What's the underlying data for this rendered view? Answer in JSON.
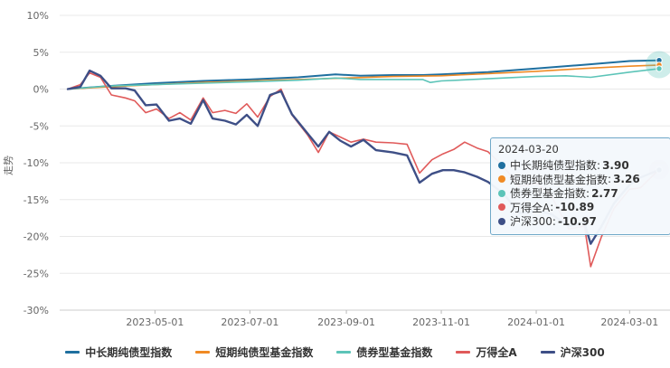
{
  "chart_data": {
    "type": "line",
    "ylabel": "走势",
    "ylim": [
      -30,
      10
    ],
    "y_ticks": [
      "10%",
      "5%",
      "0%",
      "-5%",
      "-10%",
      "-15%",
      "-20%",
      "-25%",
      "-30%"
    ],
    "y_tick_values": [
      10,
      5,
      0,
      -5,
      -10,
      -15,
      -20,
      -25,
      -30
    ],
    "x_start": "2023-03-06",
    "x_end": "2024-03-20",
    "x_ticks": [
      {
        "date": "2023-05-01",
        "label": "2023-05-01"
      },
      {
        "date": "2023-07-01",
        "label": "2023-07-01"
      },
      {
        "date": "2023-09-01",
        "label": "2023-09-01"
      },
      {
        "date": "2023-11-01",
        "label": "2023-11-01"
      },
      {
        "date": "2024-01-01",
        "label": "2024-01-01"
      },
      {
        "date": "2024-03-01",
        "label": "2024-03-01"
      }
    ],
    "grid": "horizontal",
    "legend": "bottom",
    "series": [
      {
        "name": "中长期纯债型指数",
        "color": "#1f6f9f",
        "width": 2,
        "points": [
          [
            "2023-03-06",
            0
          ],
          [
            "2023-04-01",
            0.4
          ],
          [
            "2023-05-01",
            0.8
          ],
          [
            "2023-06-01",
            1.1
          ],
          [
            "2023-07-01",
            1.3
          ],
          [
            "2023-08-01",
            1.6
          ],
          [
            "2023-08-25",
            2.0
          ],
          [
            "2023-09-10",
            1.8
          ],
          [
            "2023-10-01",
            1.9
          ],
          [
            "2023-10-20",
            1.9
          ],
          [
            "2023-11-01",
            2.0
          ],
          [
            "2023-12-01",
            2.3
          ],
          [
            "2024-01-01",
            2.8
          ],
          [
            "2024-02-01",
            3.3
          ],
          [
            "2024-03-01",
            3.8
          ],
          [
            "2024-03-20",
            3.9
          ]
        ]
      },
      {
        "name": "短期纯债型基金指数",
        "color": "#f08a24",
        "width": 1.6,
        "points": [
          [
            "2023-03-06",
            0
          ],
          [
            "2023-04-01",
            0.3
          ],
          [
            "2023-05-01",
            0.6
          ],
          [
            "2023-06-01",
            0.9
          ],
          [
            "2023-07-01",
            1.1
          ],
          [
            "2023-08-01",
            1.3
          ],
          [
            "2023-09-01",
            1.5
          ],
          [
            "2023-10-01",
            1.7
          ],
          [
            "2023-11-01",
            1.8
          ],
          [
            "2023-12-01",
            2.1
          ],
          [
            "2024-01-01",
            2.4
          ],
          [
            "2024-02-01",
            2.8
          ],
          [
            "2024-03-01",
            3.1
          ],
          [
            "2024-03-20",
            3.26
          ]
        ]
      },
      {
        "name": "债券型基金指数",
        "color": "#5cc4b8",
        "width": 1.6,
        "points": [
          [
            "2023-03-06",
            0
          ],
          [
            "2023-04-01",
            0.4
          ],
          [
            "2023-05-01",
            0.6
          ],
          [
            "2023-06-01",
            0.8
          ],
          [
            "2023-07-01",
            1.0
          ],
          [
            "2023-08-01",
            1.2
          ],
          [
            "2023-08-25",
            1.5
          ],
          [
            "2023-09-10",
            1.3
          ],
          [
            "2023-10-01",
            1.3
          ],
          [
            "2023-10-20",
            1.3
          ],
          [
            "2023-10-25",
            0.9
          ],
          [
            "2023-11-01",
            1.1
          ],
          [
            "2023-12-01",
            1.4
          ],
          [
            "2024-01-01",
            1.7
          ],
          [
            "2024-01-20",
            1.8
          ],
          [
            "2024-02-05",
            1.6
          ],
          [
            "2024-03-01",
            2.3
          ],
          [
            "2024-03-20",
            2.77
          ]
        ]
      },
      {
        "name": "万得全A",
        "color": "#e05a5a",
        "width": 1.6,
        "points": [
          [
            "2023-03-06",
            0
          ],
          [
            "2023-03-14",
            0.6
          ],
          [
            "2023-03-20",
            2.2
          ],
          [
            "2023-03-27",
            1.6
          ],
          [
            "2023-04-03",
            -0.8
          ],
          [
            "2023-04-12",
            -1.2
          ],
          [
            "2023-04-18",
            -1.6
          ],
          [
            "2023-04-25",
            -3.2
          ],
          [
            "2023-05-02",
            -2.7
          ],
          [
            "2023-05-10",
            -4.0
          ],
          [
            "2023-05-17",
            -3.2
          ],
          [
            "2023-05-24",
            -4.2
          ],
          [
            "2023-06-01",
            -1.2
          ],
          [
            "2023-06-07",
            -3.2
          ],
          [
            "2023-06-15",
            -2.9
          ],
          [
            "2023-06-22",
            -3.3
          ],
          [
            "2023-06-29",
            -2.0
          ],
          [
            "2023-07-06",
            -3.8
          ],
          [
            "2023-07-14",
            -1.0
          ],
          [
            "2023-07-21",
            0.0
          ],
          [
            "2023-07-28",
            -3.5
          ],
          [
            "2023-08-07",
            -6.2
          ],
          [
            "2023-08-14",
            -8.6
          ],
          [
            "2023-08-21",
            -5.8
          ],
          [
            "2023-08-28",
            -6.5
          ],
          [
            "2023-09-04",
            -7.2
          ],
          [
            "2023-09-12",
            -6.8
          ],
          [
            "2023-09-20",
            -7.2
          ],
          [
            "2023-10-01",
            -7.3
          ],
          [
            "2023-10-10",
            -7.5
          ],
          [
            "2023-10-18",
            -11.4
          ],
          [
            "2023-10-26",
            -9.6
          ],
          [
            "2023-11-02",
            -8.8
          ],
          [
            "2023-11-09",
            -8.2
          ],
          [
            "2023-11-16",
            -7.2
          ],
          [
            "2023-11-24",
            -8.0
          ],
          [
            "2023-12-01",
            -8.5
          ],
          [
            "2023-12-11",
            -10.5
          ],
          [
            "2023-12-21",
            -13.2
          ],
          [
            "2024-01-02",
            -12.8
          ],
          [
            "2024-01-11",
            -14.6
          ],
          [
            "2024-01-22",
            -19.0
          ],
          [
            "2024-02-01",
            -18.6
          ],
          [
            "2024-02-05",
            -24.1
          ],
          [
            "2024-02-12",
            -20.0
          ],
          [
            "2024-02-20",
            -16.2
          ],
          [
            "2024-03-01",
            -13.6
          ],
          [
            "2024-03-08",
            -13.4
          ],
          [
            "2024-03-20",
            -10.89
          ]
        ]
      },
      {
        "name": "沪深300",
        "color": "#3e4f86",
        "width": 2.4,
        "points": [
          [
            "2023-03-06",
            0
          ],
          [
            "2023-03-14",
            0.3
          ],
          [
            "2023-03-20",
            2.5
          ],
          [
            "2023-03-27",
            1.8
          ],
          [
            "2023-04-03",
            0.1
          ],
          [
            "2023-04-12",
            0.1
          ],
          [
            "2023-04-18",
            -0.2
          ],
          [
            "2023-04-25",
            -2.2
          ],
          [
            "2023-05-02",
            -2.1
          ],
          [
            "2023-05-10",
            -4.3
          ],
          [
            "2023-05-17",
            -4.0
          ],
          [
            "2023-05-24",
            -4.7
          ],
          [
            "2023-06-01",
            -1.5
          ],
          [
            "2023-06-07",
            -4.0
          ],
          [
            "2023-06-15",
            -4.3
          ],
          [
            "2023-06-22",
            -4.8
          ],
          [
            "2023-06-29",
            -3.5
          ],
          [
            "2023-07-06",
            -5.0
          ],
          [
            "2023-07-14",
            -0.8
          ],
          [
            "2023-07-21",
            -0.3
          ],
          [
            "2023-07-28",
            -3.4
          ],
          [
            "2023-08-07",
            -6.0
          ],
          [
            "2023-08-14",
            -7.8
          ],
          [
            "2023-08-21",
            -5.8
          ],
          [
            "2023-08-28",
            -7.0
          ],
          [
            "2023-09-04",
            -7.8
          ],
          [
            "2023-09-12",
            -6.9
          ],
          [
            "2023-09-20",
            -8.3
          ],
          [
            "2023-10-01",
            -8.6
          ],
          [
            "2023-10-10",
            -9.0
          ],
          [
            "2023-10-18",
            -12.7
          ],
          [
            "2023-10-26",
            -11.5
          ],
          [
            "2023-11-02",
            -11.0
          ],
          [
            "2023-11-09",
            -11.0
          ],
          [
            "2023-11-16",
            -11.3
          ],
          [
            "2023-11-24",
            -11.9
          ],
          [
            "2023-12-01",
            -12.6
          ],
          [
            "2023-12-11",
            -14.2
          ],
          [
            "2023-12-21",
            -16.8
          ],
          [
            "2024-01-02",
            -16.5
          ],
          [
            "2024-01-11",
            -17.0
          ],
          [
            "2024-01-22",
            -18.6
          ],
          [
            "2024-02-01",
            -18.2
          ],
          [
            "2024-02-05",
            -21.0
          ],
          [
            "2024-02-12",
            -18.6
          ],
          [
            "2024-02-20",
            -15.5
          ],
          [
            "2024-03-01",
            -13.0
          ],
          [
            "2024-03-08",
            -12.0
          ],
          [
            "2024-03-20",
            -10.97
          ]
        ]
      }
    ]
  },
  "tooltip": {
    "date": "2024-03-20",
    "rows": [
      {
        "name": "中长期纯债型指数",
        "value": "3.90",
        "color": "#1f6f9f"
      },
      {
        "name": "短期纯债型基金指数",
        "value": "3.26",
        "color": "#f08a24"
      },
      {
        "name": "债券型基金指数",
        "value": "2.77",
        "color": "#5cc4b8"
      },
      {
        "name": "万得全A",
        "value": "-10.89",
        "color": "#e05a5a"
      },
      {
        "name": "沪深300",
        "value": "-10.97",
        "color": "#3e4f86"
      }
    ]
  }
}
